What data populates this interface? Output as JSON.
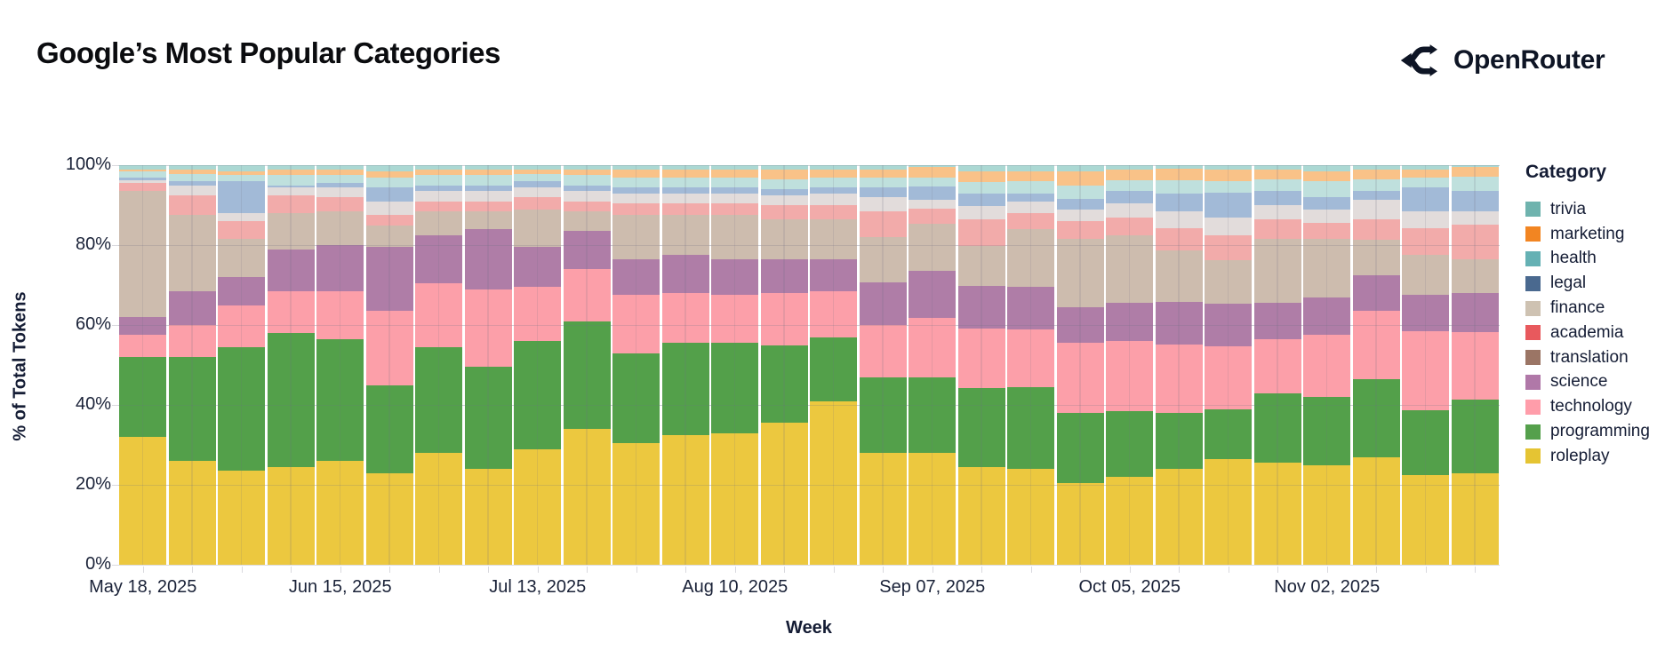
{
  "header": {
    "title": "Google’s Most Popular Categories",
    "brand": "OpenRouter"
  },
  "chart_data": {
    "type": "bar",
    "stacked": true,
    "normalized": true,
    "title": "Google’s Most Popular Categories",
    "xlabel": "Week",
    "ylabel": "% of Total Tokens",
    "ylim": [
      0,
      100
    ],
    "grid": true,
    "legend_position": "right",
    "legend_title": "Category",
    "y_tick_labels": [
      "0%",
      "20%",
      "40%",
      "60%",
      "80%",
      "100%"
    ],
    "y_tick_values": [
      0,
      20,
      40,
      60,
      80,
      100
    ],
    "x_tick_labels": [
      "May 18, 2025",
      "Jun 15, 2025",
      "Jul 13, 2025",
      "Aug 10, 2025",
      "Sep 07, 2025",
      "Oct 05, 2025",
      "Nov 02, 2025"
    ],
    "x_tick_label_indices": [
      0,
      4,
      8,
      12,
      16,
      20,
      24
    ],
    "categories": [
      "May 18, 2025",
      "May 25, 2025",
      "Jun 01, 2025",
      "Jun 08, 2025",
      "Jun 15, 2025",
      "Jun 22, 2025",
      "Jun 29, 2025",
      "Jul 06, 2025",
      "Jul 13, 2025",
      "Jul 20, 2025",
      "Jul 27, 2025",
      "Aug 03, 2025",
      "Aug 10, 2025",
      "Aug 17, 2025",
      "Aug 24, 2025",
      "Aug 31, 2025",
      "Sep 07, 2025",
      "Sep 14, 2025",
      "Sep 21, 2025",
      "Sep 28, 2025",
      "Oct 05, 2025",
      "Oct 12, 2025",
      "Oct 19, 2025",
      "Oct 26, 2025",
      "Nov 02, 2025",
      "Nov 09, 2025",
      "Nov 16, 2025",
      "Nov 23, 2025"
    ],
    "series_note": "values are % of total tokens per week; series listed bottom-to-top of stack; legend shows reverse order",
    "series": [
      {
        "name": "roleplay",
        "legend_color": "#e5c433",
        "bar_color": "#ecc83f",
        "textured": false,
        "values": [
          32,
          26,
          23.5,
          24.5,
          26,
          23,
          28,
          24,
          29,
          34,
          30.5,
          32.5,
          33,
          35.5,
          41,
          28,
          28,
          24.5,
          24,
          20.5,
          22,
          24,
          26.5,
          25.5,
          25,
          26.9,
          22.4,
          23
        ]
      },
      {
        "name": "programming",
        "legend_color": "#55a04c",
        "bar_color": "#53a04a",
        "textured": false,
        "values": [
          20,
          26,
          31,
          33.5,
          30.5,
          22,
          26.5,
          25.5,
          27,
          27,
          22.5,
          23,
          22.5,
          19.5,
          16,
          18.9,
          18.9,
          19.7,
          20.5,
          17.5,
          16.5,
          14,
          12.5,
          17.5,
          17,
          19.5,
          16.3,
          18.3
        ]
      },
      {
        "name": "technology",
        "legend_color": "#ff9daa",
        "bar_color": "#fc9fa9",
        "textured": false,
        "values": [
          5.5,
          8,
          10.5,
          10.5,
          12,
          18.5,
          16,
          19.5,
          13.5,
          13,
          14.5,
          12.5,
          12,
          13,
          11.5,
          13,
          14.9,
          14.9,
          14.5,
          17.5,
          17.5,
          17.1,
          15.7,
          13.5,
          15.5,
          17.2,
          19.7,
          17
        ]
      },
      {
        "name": "science",
        "legend_color": "#b078a8",
        "bar_color": "#af7da7",
        "textured": false,
        "values": [
          4.5,
          8.5,
          7,
          10.5,
          11.5,
          16,
          12,
          15,
          10,
          9.5,
          9,
          9.5,
          9,
          8.5,
          8,
          10.8,
          11.8,
          10.7,
          10.5,
          9,
          9.5,
          10.7,
          10.6,
          9,
          9.5,
          8.8,
          9.2,
          9.7
        ]
      },
      {
        "name": "translation",
        "legend_color": "#9b7565",
        "bar_color": "#cdbcae",
        "textured": true,
        "values": [
          31.5,
          19,
          9.5,
          9,
          8.5,
          5.5,
          6,
          4.5,
          9.5,
          5,
          11,
          10,
          11,
          10,
          10,
          11.3,
          11.7,
          10,
          14.5,
          17,
          17,
          12.9,
          10.9,
          16,
          14.5,
          8.9,
          10,
          8.4
        ]
      },
      {
        "name": "academia",
        "legend_color": "#e8595d",
        "bar_color": "#f2abaa",
        "textured": true,
        "values": [
          2,
          5,
          4.5,
          4.5,
          3.5,
          2.5,
          2.5,
          2.5,
          3,
          2.5,
          3,
          3,
          3,
          3.5,
          3.5,
          6.4,
          3.8,
          6.6,
          4,
          4.5,
          4.5,
          5.6,
          6.2,
          5,
          4,
          5.1,
          6.7,
          8.7
        ]
      },
      {
        "name": "finance",
        "legend_color": "#cec2b2",
        "bar_color": "#e2dcdb",
        "textured": true,
        "values": [
          0.7,
          2.5,
          2,
          2,
          2.5,
          3.5,
          2.5,
          2.5,
          2.5,
          2.5,
          2.5,
          2.5,
          2.5,
          2.5,
          3,
          3.5,
          2.2,
          3.4,
          3,
          3,
          3.5,
          4.1,
          4.5,
          3.5,
          3.5,
          4.9,
          4.1,
          3.3
        ]
      },
      {
        "name": "legal",
        "legend_color": "#4a698f",
        "bar_color": "#a2bad7",
        "textured": true,
        "values": [
          0.8,
          1,
          8,
          0.5,
          1,
          3.5,
          1.5,
          1.5,
          1.5,
          1.5,
          1.5,
          1.5,
          1.5,
          1.5,
          1.5,
          2.5,
          3.4,
          3,
          2,
          2.5,
          3,
          4.4,
          6.2,
          3.5,
          3,
          2.3,
          6,
          5.2
        ]
      },
      {
        "name": "health",
        "legend_color": "#65b1b4",
        "bar_color": "#bfe0dd",
        "textured": true,
        "values": [
          1.4,
          1.8,
          1.5,
          2.5,
          2,
          2.5,
          2.5,
          2.5,
          1.8,
          2.5,
          2.5,
          2.5,
          2.5,
          2.5,
          2.5,
          2.6,
          2.2,
          3,
          3,
          3.5,
          2.8,
          3.4,
          3,
          3,
          4,
          2.8,
          2.4,
          3.5
        ]
      },
      {
        "name": "marketing",
        "legend_color": "#f28522",
        "bar_color": "#f9c288",
        "textured": true,
        "values": [
          0.4,
          1.2,
          1,
          1.5,
          1.5,
          1.5,
          1.5,
          1.5,
          1.2,
          1.5,
          2,
          2,
          2,
          2.5,
          2,
          2,
          2.6,
          2.7,
          2.5,
          3.5,
          2.7,
          2.9,
          2.9,
          2.5,
          2.5,
          2.6,
          2.2,
          2.4
        ]
      },
      {
        "name": "trivia",
        "legend_color": "#6fb3ae",
        "bar_color": "#abd8d3",
        "textured": true,
        "values": [
          1.2,
          1,
          1.5,
          1,
          1,
          1.5,
          1,
          1,
          1,
          1,
          1,
          1,
          1,
          1,
          1,
          1,
          0.5,
          1.5,
          1.5,
          1.5,
          1,
          0.9,
          1,
          1,
          1.5,
          1,
          1,
          0.5
        ]
      }
    ]
  }
}
